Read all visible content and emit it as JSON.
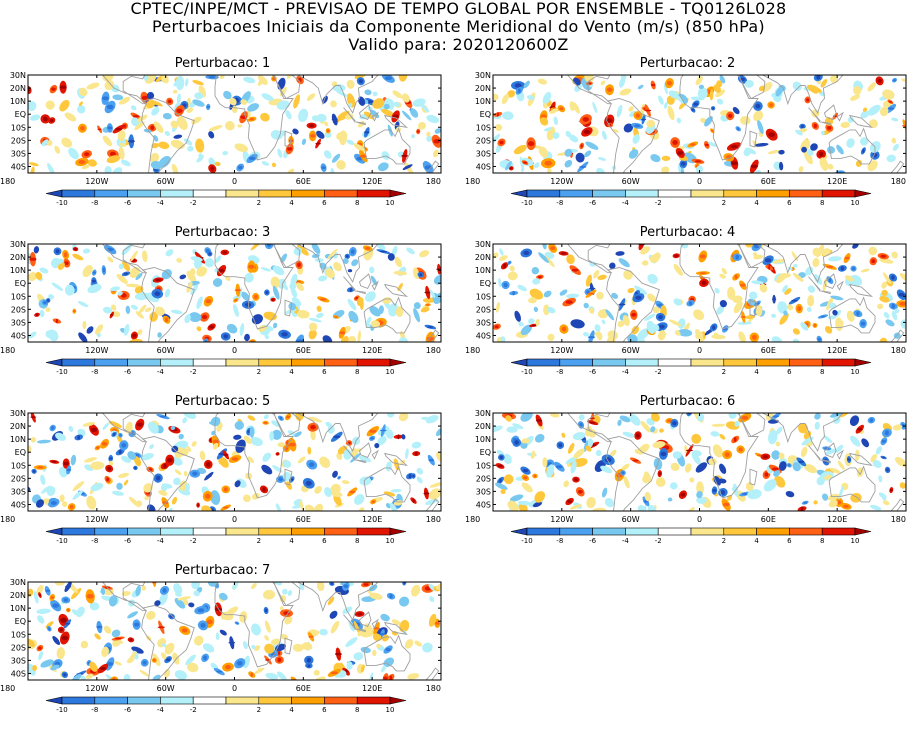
{
  "header": {
    "line1": "CPTEC/INPE/MCT - PREVISAO DE TEMPO GLOBAL POR ENSEMBLE - TQ0126L028",
    "line2": "Perturbacoes Iniciais da Componente Meridional do Vento (m/s) (850 hPa)",
    "line3": "Valido para: 2020120600Z"
  },
  "axes": {
    "lat_labels": [
      "30N",
      "20N",
      "10N",
      "EQ",
      "10S",
      "20S",
      "30S",
      "40S"
    ],
    "lon_labels": [
      "180",
      "120W",
      "60W",
      "0",
      "60E",
      "120E",
      "180"
    ],
    "lat_values": [
      30,
      20,
      10,
      0,
      -10,
      -20,
      -30,
      -40
    ],
    "lon_values": [
      -180,
      -120,
      -60,
      0,
      60,
      120,
      180
    ],
    "lat_range": [
      -45,
      30
    ],
    "lon_range": [
      -180,
      180
    ]
  },
  "colorbar": {
    "labels": [
      "-10",
      "-8",
      "-6",
      "-4",
      "-2",
      "2",
      "4",
      "6",
      "8",
      "10"
    ],
    "colors": [
      "#1e46b4",
      "#2d78dc",
      "#4ba0f0",
      "#78c8f0",
      "#b4f0fa",
      "#ffffff",
      "#fae68c",
      "#ffc83c",
      "#ffa000",
      "#ff6014",
      "#e11400",
      "#a50000"
    ]
  },
  "panels": [
    {
      "title": "Perturbacao: 1"
    },
    {
      "title": "Perturbacao: 2"
    },
    {
      "title": "Perturbacao: 3"
    },
    {
      "title": "Perturbacao: 4"
    },
    {
      "title": "Perturbacao: 5"
    },
    {
      "title": "Perturbacao: 6"
    },
    {
      "title": "Perturbacao: 7"
    }
  ]
}
